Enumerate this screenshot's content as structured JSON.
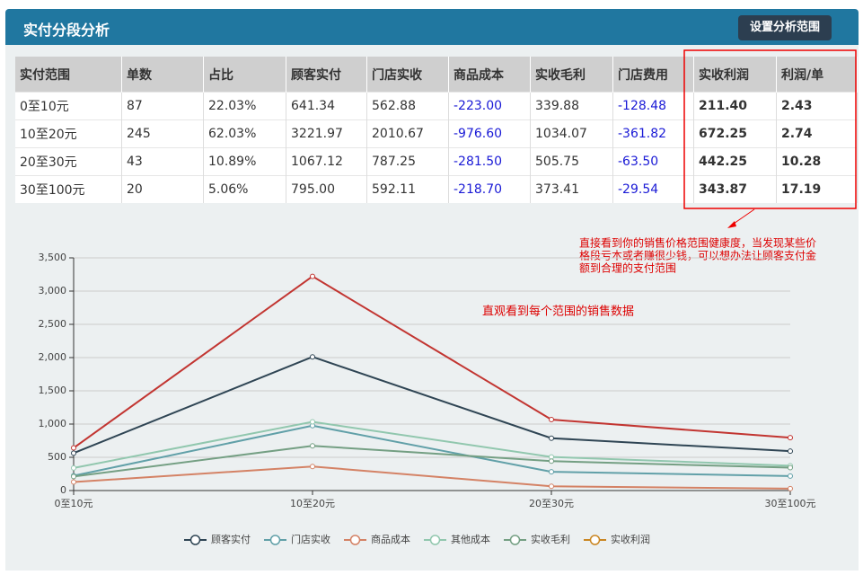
{
  "header": {
    "title": "实付分段分析",
    "button": "设置分析范围"
  },
  "table": {
    "columns": [
      "实付范围",
      "单数",
      "占比",
      "顾客实付",
      "门店实收",
      "商品成本",
      "实收毛利",
      "门店费用",
      "实收利润",
      "利润/单"
    ],
    "rows": [
      [
        "0至10元",
        "87",
        "22.03%",
        "641.34",
        "562.88",
        "-223.00",
        "339.88",
        "-128.48",
        "211.40",
        "2.43"
      ],
      [
        "10至20元",
        "245",
        "62.03%",
        "3221.97",
        "2010.67",
        "-976.60",
        "1034.07",
        "-361.82",
        "672.25",
        "2.74"
      ],
      [
        "20至30元",
        "43",
        "10.89%",
        "1067.12",
        "787.25",
        "-281.50",
        "505.75",
        "-63.50",
        "442.25",
        "10.28"
      ],
      [
        "30至100元",
        "20",
        "5.06%",
        "795.00",
        "592.11",
        "-218.70",
        "373.41",
        "-29.54",
        "343.87",
        "17.19"
      ]
    ]
  },
  "table_note": [
    "直接看到你的销售价格范围健康度，当发现某些价",
    "格段亏本或者赚很少钱，可以想办法让顾客支付金",
    "额到合理的支付范围"
  ],
  "chart_data": {
    "type": "line",
    "annotation": "直观看到每个范围的销售数据",
    "categories": [
      "0至10元",
      "10至20元",
      "20至30元",
      "30至100元"
    ],
    "series": [
      {
        "color": "#c23531",
        "values": [
          641.34,
          3221.97,
          1067.12,
          795
        ]
      },
      {
        "color": "#2f4554",
        "values": [
          562.88,
          2010.67,
          787.25,
          592.11
        ]
      },
      {
        "color": "#61a0a8",
        "values": [
          223,
          976.6,
          281.5,
          218.7
        ]
      },
      {
        "color": "#d48265",
        "values": [
          128.48,
          361.82,
          63.5,
          29.54
        ]
      },
      {
        "color": "#91c7ae",
        "values": [
          339.88,
          1034.07,
          505.75,
          373.41
        ]
      },
      {
        "color": "#749f83",
        "values": [
          211.4,
          672.25,
          442.25,
          343.87
        ]
      }
    ],
    "legend": [
      {
        "name": "顾客实付",
        "color": "#2f4554"
      },
      {
        "name": "门店实收",
        "color": "#61a0a8"
      },
      {
        "name": "商品成本",
        "color": "#d48265"
      },
      {
        "name": "其他成本",
        "color": "#91c7ae"
      },
      {
        "name": "实收毛利",
        "color": "#749f83"
      },
      {
        "name": "实收利润",
        "color": "#ca8622"
      }
    ],
    "ylim": [
      0,
      3500
    ],
    "yticks": [
      0,
      500,
      {
        "value": 1000,
        "label": "1,000"
      },
      {
        "value": 1500,
        "label": "1,500"
      },
      {
        "value": 2000,
        "label": "2,000"
      },
      {
        "value": 2500,
        "label": "2,500"
      },
      {
        "value": 3000,
        "label": "3,000"
      },
      {
        "value": 3500,
        "label": "3,500"
      }
    ],
    "grid": true
  }
}
